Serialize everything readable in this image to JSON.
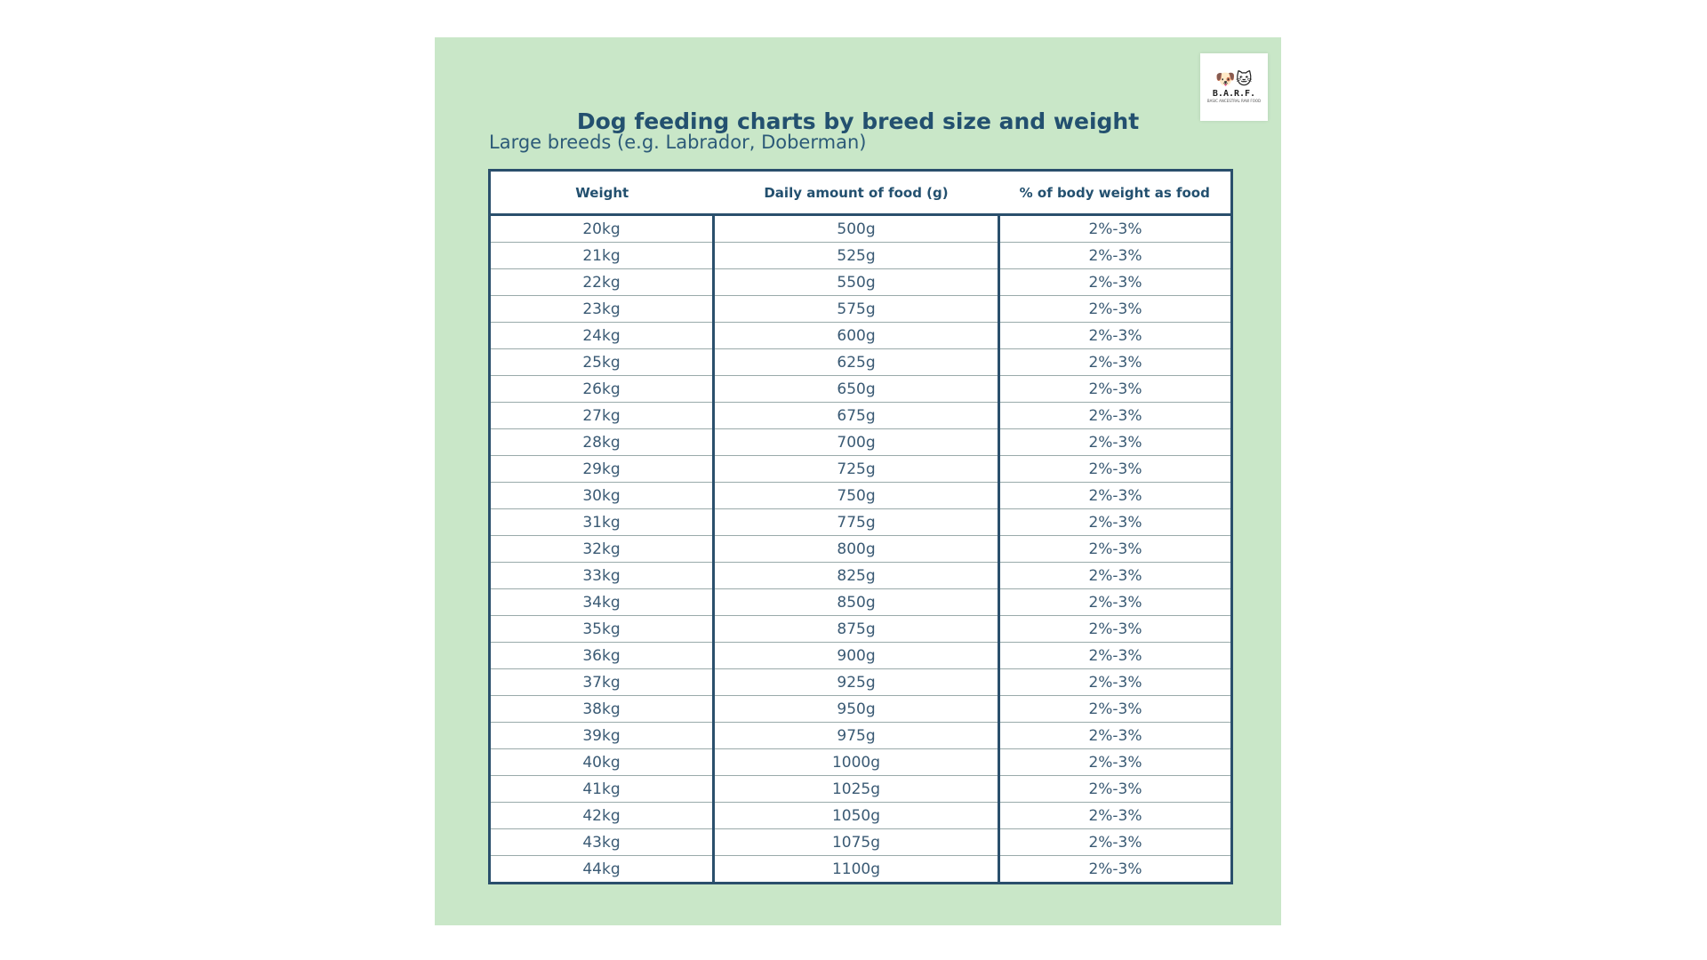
{
  "title": "Dog feeding charts by breed size and weight",
  "subtitle": "Large breeds (e.g. Labrador, Doberman)",
  "logo": {
    "text": "B.A.R.F.",
    "icon": "dog-cat-logo-icon",
    "tagline": "BASIC ANCESTRAL RAW FOOD"
  },
  "colors": {
    "background": "#c9e7c8",
    "text": "#23506f",
    "border": "#2a4f6c"
  },
  "table": {
    "headers": [
      "Weight",
      "Daily amount of food (g)",
      "% of body weight as food"
    ],
    "rows": [
      [
        "20kg",
        "500g",
        "2%-3%"
      ],
      [
        "21kg",
        "525g",
        "2%-3%"
      ],
      [
        "22kg",
        "550g",
        "2%-3%"
      ],
      [
        "23kg",
        "575g",
        "2%-3%"
      ],
      [
        "24kg",
        "600g",
        "2%-3%"
      ],
      [
        "25kg",
        "625g",
        "2%-3%"
      ],
      [
        "26kg",
        "650g",
        "2%-3%"
      ],
      [
        "27kg",
        "675g",
        "2%-3%"
      ],
      [
        "28kg",
        "700g",
        "2%-3%"
      ],
      [
        "29kg",
        "725g",
        "2%-3%"
      ],
      [
        "30kg",
        "750g",
        "2%-3%"
      ],
      [
        "31kg",
        "775g",
        "2%-3%"
      ],
      [
        "32kg",
        "800g",
        "2%-3%"
      ],
      [
        "33kg",
        "825g",
        "2%-3%"
      ],
      [
        "34kg",
        "850g",
        "2%-3%"
      ],
      [
        "35kg",
        "875g",
        "2%-3%"
      ],
      [
        "36kg",
        "900g",
        "2%-3%"
      ],
      [
        "37kg",
        "925g",
        "2%-3%"
      ],
      [
        "38kg",
        "950g",
        "2%-3%"
      ],
      [
        "39kg",
        "975g",
        "2%-3%"
      ],
      [
        "40kg",
        "1000g",
        "2%-3%"
      ],
      [
        "41kg",
        "1025g",
        "2%-3%"
      ],
      [
        "42kg",
        "1050g",
        "2%-3%"
      ],
      [
        "43kg",
        "1075g",
        "2%-3%"
      ],
      [
        "44kg",
        "1100g",
        "2%-3%"
      ]
    ]
  }
}
